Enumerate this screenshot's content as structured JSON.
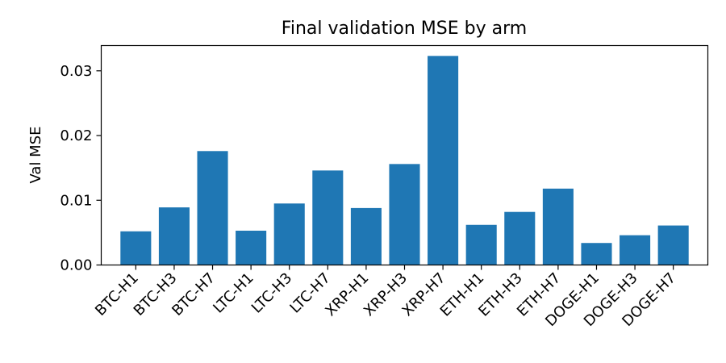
{
  "chart_data": {
    "type": "bar",
    "title": "Final validation MSE by arm",
    "xlabel": "",
    "ylabel": "Val MSE",
    "categories": [
      "BTC-H1",
      "BTC-H3",
      "BTC-H7",
      "LTC-H1",
      "LTC-H3",
      "LTC-H7",
      "XRP-H1",
      "XRP-H3",
      "XRP-H7",
      "ETH-H1",
      "ETH-H3",
      "ETH-H7",
      "DOGE-H1",
      "DOGE-H3",
      "DOGE-H7"
    ],
    "values": [
      0.0052,
      0.0089,
      0.0176,
      0.0053,
      0.0095,
      0.0146,
      0.0088,
      0.0156,
      0.0323,
      0.0062,
      0.0082,
      0.0118,
      0.0034,
      0.0046,
      0.0061
    ],
    "ylim": [
      0,
      0.0339
    ],
    "yticks": [
      0.0,
      0.01,
      0.02,
      0.03
    ],
    "ytick_labels": [
      "0.00",
      "0.01",
      "0.02",
      "0.03"
    ],
    "grid": false,
    "bar_color": "#1f77b4"
  }
}
